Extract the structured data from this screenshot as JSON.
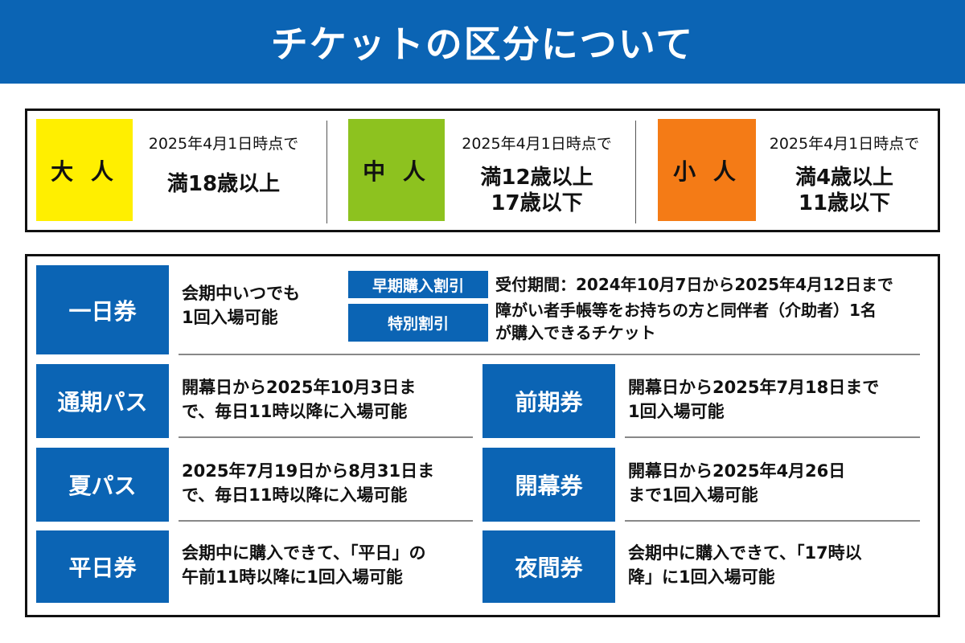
{
  "title": "チケットの区分について",
  "colors": {
    "header": "#0b64b4",
    "adult": "#ffef00",
    "middle": "#8dc21f",
    "child": "#f47b16"
  },
  "ages": [
    {
      "label": "大 人",
      "note": "2025年4月1日時点で",
      "range": [
        "満18歳以上"
      ]
    },
    {
      "label": "中 人",
      "note": "2025年4月1日時点で",
      "range": [
        "満12歳以上",
        "17歳以下"
      ]
    },
    {
      "label": "小 人",
      "note": "2025年4月1日時点で",
      "range": [
        "満4歳以上",
        "11歳以下"
      ]
    }
  ],
  "one_day": {
    "label": "一日券",
    "desc": [
      "会期中いつでも",
      "1回入場可能"
    ],
    "discounts": [
      {
        "tag": "早期購入割引",
        "desc": [
          "受付期間：2024年10月7日から2025年4月12日まで"
        ]
      },
      {
        "tag": "特別割引",
        "desc": [
          "障がい者手帳等をお持ちの方と同伴者（介助者）1名",
          "が購入できるチケット"
        ]
      }
    ]
  },
  "tickets": [
    {
      "label": "通期パス",
      "desc": [
        "開幕日から2025年10月3日ま",
        "で、毎日11時以降に入場可能"
      ]
    },
    {
      "label": "前期券",
      "desc": [
        "開幕日から2025年7月18日まで",
        "1回入場可能"
      ]
    },
    {
      "label": "夏パス",
      "desc": [
        "2025年7月19日から8月31日ま",
        "で、毎日11時以降に入場可能"
      ]
    },
    {
      "label": "開幕券",
      "desc": [
        "開幕日から2025年4月26日",
        "まで1回入場可能"
      ]
    },
    {
      "label": "平日券",
      "desc": [
        "会期中に購入できて、「平日」の",
        "午前11時以降に1回入場可能"
      ]
    },
    {
      "label": "夜間券",
      "desc": [
        "会期中に購入できて、「17時以",
        "降」に1回入場可能"
      ]
    }
  ]
}
